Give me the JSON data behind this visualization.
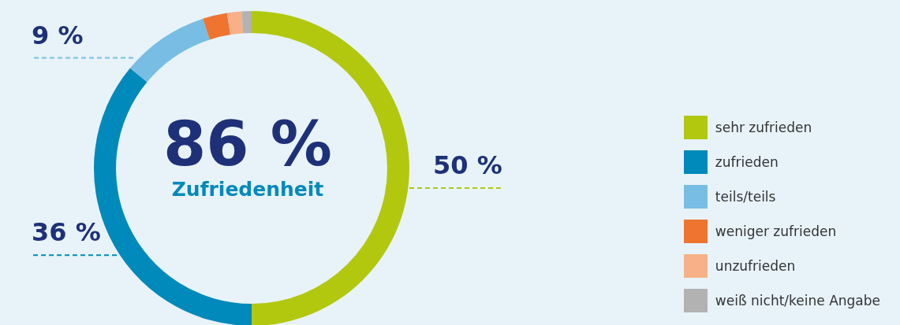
{
  "chart_data": {
    "type": "donut",
    "categories": [
      "sehr zufrieden",
      "zufrieden",
      "teils/teils",
      "weniger zufrieden",
      "unzufrieden",
      "weiß nicht/keine Angabe"
    ],
    "values": [
      50,
      36,
      9,
      2.5,
      1.5,
      1
    ],
    "colors": [
      "#b1c80f",
      "#0089bb",
      "#78bde3",
      "#ee7430",
      "#f7b087",
      "#b2b2b2"
    ],
    "value_labels": [
      "50 %",
      "36 %",
      "9 %",
      null,
      null,
      null
    ],
    "annotations": [
      "86 %",
      "Zufriedenheit"
    ],
    "legend": "right"
  }
}
